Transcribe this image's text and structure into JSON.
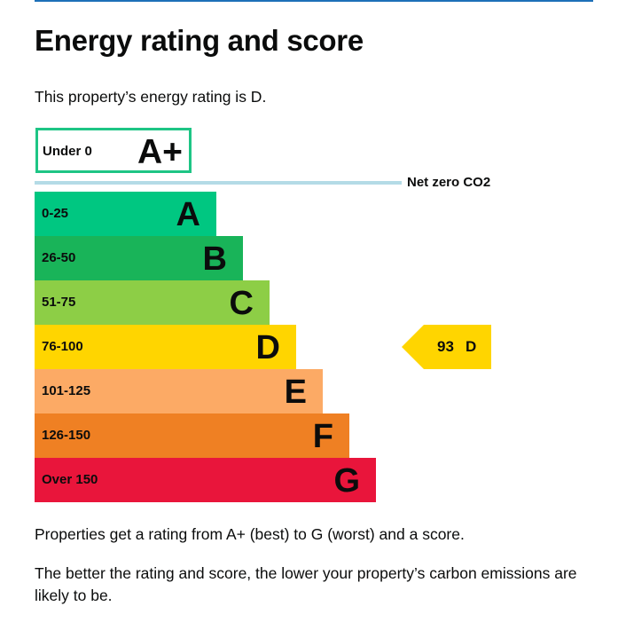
{
  "heading": "Energy rating and score",
  "intro": "This property’s energy rating is D.",
  "net_zero_label": "Net zero CO2",
  "colors": {
    "accent_rule": "#1d70b8",
    "net_zero_line": "#b4dbe6",
    "aplus_border": "#1ec585"
  },
  "chart_data": {
    "type": "bar",
    "categories": [
      "A+",
      "A",
      "B",
      "C",
      "D",
      "E",
      "F",
      "G"
    ],
    "bands": [
      {
        "letter": "A+",
        "range": "Under 0",
        "color": "#ffffff",
        "border": "#1ec585"
      },
      {
        "letter": "A",
        "range": "0-25",
        "color": "#00c781"
      },
      {
        "letter": "B",
        "range": "26-50",
        "color": "#19b459"
      },
      {
        "letter": "C",
        "range": "51-75",
        "color": "#8dce46"
      },
      {
        "letter": "D",
        "range": "76-100",
        "color": "#ffd500"
      },
      {
        "letter": "E",
        "range": "101-125",
        "color": "#fcaa65"
      },
      {
        "letter": "F",
        "range": "126-150",
        "color": "#ef8023"
      },
      {
        "letter": "G",
        "range": "Over 150",
        "color": "#e9153b"
      }
    ],
    "current": {
      "score": "93",
      "letter": "D",
      "color": "#ffd500"
    }
  },
  "footer": {
    "p1": "Properties get a rating from A+ (best) to G (worst) and a score.",
    "p2": "The better the rating and score, the lower your property’s carbon emissions are likely to be."
  }
}
